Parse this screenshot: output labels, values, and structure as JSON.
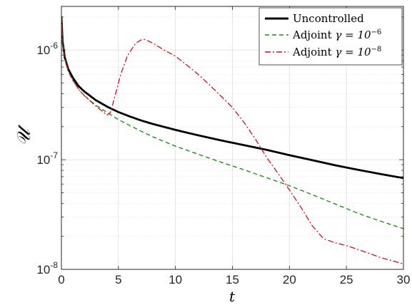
{
  "chart_data": {
    "type": "line",
    "xlabel": "t",
    "ylabel": "𝒰",
    "xlim": [
      0,
      30
    ],
    "ylim": [
      1e-08,
      2.5e-06
    ],
    "yscale": "log",
    "grid": true,
    "legend_position": "top-right",
    "x_ticks": [
      "0",
      "5",
      "10",
      "15",
      "20",
      "25",
      "30"
    ],
    "y_ticks": [
      {
        "base": "10",
        "exp": "-8"
      },
      {
        "base": "10",
        "exp": "-7"
      },
      {
        "base": "10",
        "exp": "-6"
      }
    ],
    "series": [
      {
        "name": "Uncontrolled",
        "color": "#000000",
        "style": "solid",
        "x": [
          0,
          0.1,
          0.3,
          0.6,
          1,
          1.5,
          2,
          3,
          4,
          5,
          6,
          7,
          8,
          10,
          12,
          14,
          16,
          18,
          20,
          22,
          24,
          26,
          28,
          30
        ],
        "y": [
          2e-06,
          1.2e-06,
          8.5e-07,
          6.7e-07,
          5.6e-07,
          4.7e-07,
          4.2e-07,
          3.5e-07,
          3.05e-07,
          2.72e-07,
          2.48e-07,
          2.28e-07,
          2.12e-07,
          1.87e-07,
          1.67e-07,
          1.5e-07,
          1.36e-07,
          1.23e-07,
          1.1e-07,
          9.9e-08,
          8.9e-08,
          8.1e-08,
          7.4e-08,
          6.8e-08
        ]
      },
      {
        "name_prefix": "Adjoint ",
        "name_math": "γ = 10",
        "name_exp": "−6",
        "color": "#1f8c1f",
        "style": "dashed",
        "x": [
          0,
          0.1,
          0.3,
          0.6,
          1,
          1.5,
          2,
          3,
          4,
          5,
          6,
          7,
          8,
          10,
          12,
          14,
          16,
          18,
          20,
          22,
          24,
          26,
          28,
          30
        ],
        "y": [
          2e-06,
          1.15e-06,
          8.2e-07,
          6.4e-07,
          5.3e-07,
          4.4e-07,
          3.85e-07,
          3.15e-07,
          2.7e-07,
          2.32e-07,
          2.05e-07,
          1.82e-07,
          1.62e-07,
          1.33e-07,
          1.12e-07,
          9.5e-08,
          8.1e-08,
          6.85e-08,
          5.8e-08,
          4.8e-08,
          3.95e-08,
          3.25e-08,
          2.75e-08,
          2.35e-08
        ]
      },
      {
        "name_prefix": "Adjoint ",
        "name_math": "γ = 10",
        "name_exp": "−8",
        "color": "#d10d1e",
        "style": "dashdot",
        "x": [
          0,
          0.1,
          0.3,
          0.6,
          1,
          1.5,
          2,
          3,
          4,
          4.3,
          4.7,
          5.2,
          5.8,
          6.5,
          7,
          7.3,
          8,
          9,
          10,
          11,
          12,
          13,
          14,
          15,
          16,
          17,
          18,
          19,
          20,
          21,
          22,
          23,
          24,
          25,
          26,
          27,
          28,
          29,
          30
        ],
        "y": [
          2e-06,
          1.15e-06,
          8.2e-07,
          6.4e-07,
          5.3e-07,
          4.4e-07,
          3.85e-07,
          3.1e-07,
          2.55e-07,
          2.7e-07,
          3.8e-07,
          6e-07,
          8.9e-07,
          1.15e-06,
          1.24e-06,
          1.25e-06,
          1.16e-06,
          1e-06,
          8.8e-07,
          7.3e-07,
          6e-07,
          4.8e-07,
          3.8e-07,
          3e-07,
          2.2e-07,
          1.55e-07,
          1.05e-07,
          7.5e-08,
          5.3e-08,
          3.7e-08,
          2.5e-08,
          1.9e-08,
          1.75e-08,
          1.65e-08,
          1.52e-08,
          1.4e-08,
          1.28e-08,
          1.2e-08,
          1.12e-08
        ]
      }
    ]
  }
}
